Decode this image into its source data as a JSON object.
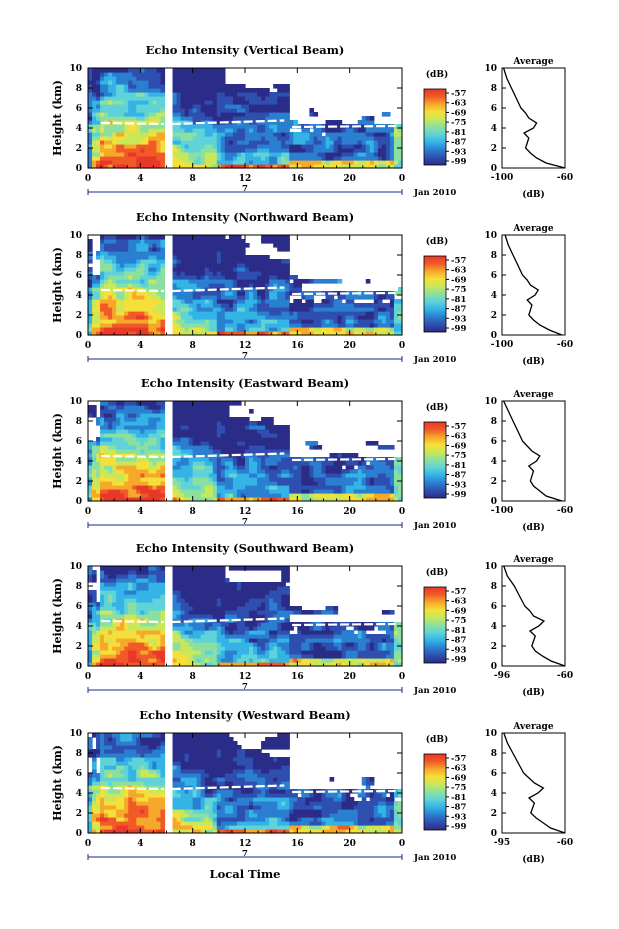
{
  "x_axis_title": "Local Time",
  "colorbar_unit": "(dB)",
  "colorbar_ticks": [
    "-57",
    "-63",
    "-69",
    "-75",
    "-81",
    "-87",
    "-93",
    "-99"
  ],
  "colors": {
    "ramp": [
      "#2b2c88",
      "#2f4fb0",
      "#2a7fd0",
      "#34b3e6",
      "#5fd3d8",
      "#8be0a0",
      "#c8e85a",
      "#f5df3a",
      "#f6a82a",
      "#f05a28",
      "#e8382a"
    ],
    "white_line": "#ffffff"
  },
  "chart_data": [
    {
      "type": "heatmap",
      "title": "Echo Intensity (Vertical Beam)",
      "ylabel": "Height (km)",
      "xlim": [
        0,
        24
      ],
      "ylim": [
        0,
        10
      ],
      "xticks": [
        "0",
        "4",
        "8",
        "12",
        "16",
        "20",
        "0"
      ],
      "yticks": [
        "0",
        "2",
        "4",
        "6",
        "8",
        "10"
      ],
      "date_label": "Jan 2010",
      "date_tick": "7",
      "colorbar": {
        "label": "(dB)",
        "range": [
          -99,
          -57
        ]
      },
      "profile": {
        "title": "Average",
        "xlabel": "(dB)",
        "xticks": [
          "-100",
          "-60"
        ],
        "xlim": [
          -100,
          -60
        ],
        "values": [
          [
            0,
            -60
          ],
          [
            0.5,
            -72
          ],
          [
            1,
            -78
          ],
          [
            1.5,
            -82
          ],
          [
            2,
            -85
          ],
          [
            2.5,
            -84
          ],
          [
            3,
            -83
          ],
          [
            3.5,
            -86
          ],
          [
            4,
            -80
          ],
          [
            4.5,
            -78
          ],
          [
            5,
            -83
          ],
          [
            5.5,
            -85
          ],
          [
            6,
            -88
          ],
          [
            7,
            -91
          ],
          [
            8,
            -94
          ],
          [
            9,
            -97
          ],
          [
            10,
            -99
          ]
        ]
      }
    },
    {
      "type": "heatmap",
      "title": "Echo Intensity (Northward Beam)",
      "ylabel": "Height (km)",
      "xlim": [
        0,
        24
      ],
      "ylim": [
        0,
        10
      ],
      "xticks": [
        "0",
        "4",
        "8",
        "12",
        "16",
        "20",
        "0"
      ],
      "yticks": [
        "0",
        "2",
        "4",
        "6",
        "8",
        "10"
      ],
      "date_label": "Jan 2010",
      "date_tick": "7",
      "colorbar": {
        "label": "(dB)",
        "range": [
          -99,
          -57
        ]
      },
      "profile": {
        "title": "Average",
        "xlabel": "(dB)",
        "xticks": [
          "-100",
          "-60"
        ],
        "xlim": [
          -100,
          -60
        ],
        "values": [
          [
            0,
            -62
          ],
          [
            0.5,
            -70
          ],
          [
            1,
            -76
          ],
          [
            1.5,
            -80
          ],
          [
            2,
            -83
          ],
          [
            2.5,
            -82
          ],
          [
            3,
            -81
          ],
          [
            3.5,
            -84
          ],
          [
            4,
            -79
          ],
          [
            4.5,
            -77
          ],
          [
            5,
            -82
          ],
          [
            5.5,
            -84
          ],
          [
            6,
            -87
          ],
          [
            7,
            -90
          ],
          [
            8,
            -93
          ],
          [
            9,
            -96
          ],
          [
            10,
            -98
          ]
        ]
      }
    },
    {
      "type": "heatmap",
      "title": "Echo Intensity (Eastward Beam)",
      "ylabel": "Height (km)",
      "xlim": [
        0,
        24
      ],
      "ylim": [
        0,
        10
      ],
      "xticks": [
        "0",
        "4",
        "8",
        "12",
        "16",
        "20",
        "0"
      ],
      "yticks": [
        "0",
        "2",
        "4",
        "6",
        "8",
        "10"
      ],
      "date_label": "Jan 2010",
      "date_tick": "7",
      "colorbar": {
        "label": "(dB)",
        "range": [
          -99,
          -57
        ]
      },
      "profile": {
        "title": "Average",
        "xlabel": "(dB)",
        "xticks": [
          "-100",
          "-60"
        ],
        "xlim": [
          -100,
          -60
        ],
        "values": [
          [
            0,
            -62
          ],
          [
            0.5,
            -72
          ],
          [
            1,
            -76
          ],
          [
            1.5,
            -80
          ],
          [
            2,
            -82
          ],
          [
            2.5,
            -81
          ],
          [
            3,
            -80
          ],
          [
            3.5,
            -83
          ],
          [
            4,
            -78
          ],
          [
            4.5,
            -76
          ],
          [
            5,
            -81
          ],
          [
            5.5,
            -84
          ],
          [
            6,
            -87
          ],
          [
            7,
            -90
          ],
          [
            8,
            -93
          ],
          [
            9,
            -96
          ],
          [
            10,
            -99
          ]
        ]
      }
    },
    {
      "type": "heatmap",
      "title": "Echo Intensity (Southward Beam)",
      "ylabel": "Height (km)",
      "xlim": [
        0,
        24
      ],
      "ylim": [
        0,
        10
      ],
      "xticks": [
        "0",
        "4",
        "8",
        "12",
        "16",
        "20",
        "0"
      ],
      "yticks": [
        "0",
        "2",
        "4",
        "6",
        "8",
        "10"
      ],
      "date_label": "Jan 2010",
      "date_tick": "7",
      "colorbar": {
        "label": "(dB)",
        "range": [
          -99,
          -57
        ]
      },
      "profile": {
        "title": "Average",
        "xlabel": "(dB)",
        "xticks": [
          "-96",
          "-60"
        ],
        "xlim": [
          -96,
          -60
        ],
        "values": [
          [
            0,
            -60
          ],
          [
            0.5,
            -68
          ],
          [
            1,
            -73
          ],
          [
            1.5,
            -77
          ],
          [
            2,
            -79
          ],
          [
            2.5,
            -78
          ],
          [
            3,
            -77
          ],
          [
            3.5,
            -80
          ],
          [
            4,
            -75
          ],
          [
            4.5,
            -72
          ],
          [
            5,
            -78
          ],
          [
            5.5,
            -80
          ],
          [
            6,
            -83
          ],
          [
            7,
            -86
          ],
          [
            8,
            -89
          ],
          [
            9,
            -93
          ],
          [
            10,
            -95
          ]
        ]
      }
    },
    {
      "type": "heatmap",
      "title": "Echo Intensity (Westward Beam)",
      "ylabel": "Height (km)",
      "xlim": [
        0,
        24
      ],
      "ylim": [
        0,
        10
      ],
      "xticks": [
        "0",
        "4",
        "8",
        "12",
        "16",
        "20",
        "0"
      ],
      "yticks": [
        "0",
        "2",
        "4",
        "6",
        "8",
        "10"
      ],
      "date_label": "Jan 2010",
      "date_tick": "7",
      "colorbar": {
        "label": "(dB)",
        "range": [
          -99,
          -57
        ]
      },
      "profile": {
        "title": "Average",
        "xlabel": "(dB)",
        "xticks": [
          "-95",
          "-60"
        ],
        "xlim": [
          -95,
          -60
        ],
        "values": [
          [
            0,
            -60
          ],
          [
            0.5,
            -68
          ],
          [
            1,
            -72
          ],
          [
            1.5,
            -76
          ],
          [
            2,
            -79
          ],
          [
            2.5,
            -78
          ],
          [
            3,
            -77
          ],
          [
            3.5,
            -80
          ],
          [
            4,
            -75
          ],
          [
            4.5,
            -72
          ],
          [
            5,
            -77
          ],
          [
            5.5,
            -80
          ],
          [
            6,
            -83
          ],
          [
            7,
            -86
          ],
          [
            8,
            -89
          ],
          [
            9,
            -92
          ],
          [
            10,
            -94
          ]
        ]
      }
    }
  ]
}
